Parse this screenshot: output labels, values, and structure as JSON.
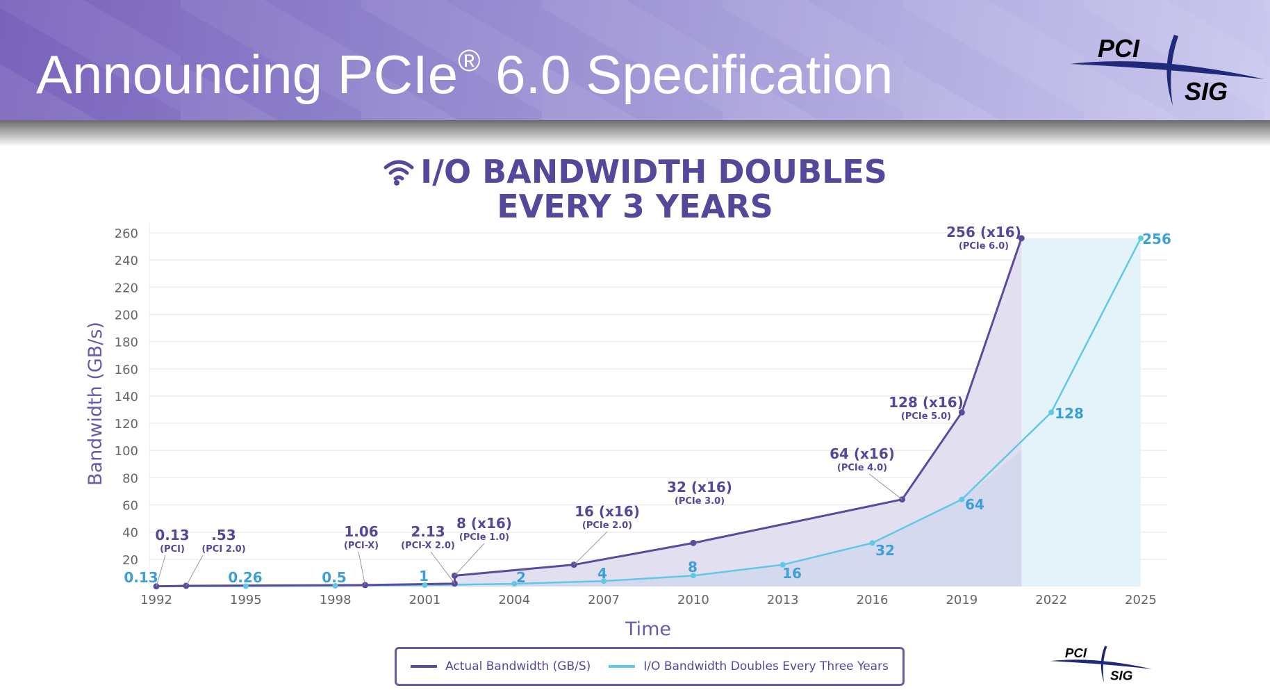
{
  "header": {
    "title_prefix": "Announcing PCIe",
    "title_mark": "®",
    "title_suffix": " 6.0 Specification",
    "logo_top": "PCI",
    "logo_bottom": "SIG"
  },
  "colors": {
    "actual": "#5b4a9e",
    "doubling": "#5ec8e6",
    "doubling_label": "#3d9fd8",
    "text": "#56479a"
  },
  "chart_data": {
    "type": "line",
    "title": [
      "I/O BANDWIDTH DOUBLES",
      "EVERY 3 YEARS"
    ],
    "title_icon": "wifi-signal-icon",
    "xlabel": "Time",
    "ylabel": "Bandwidth (GB/s)",
    "xlim": [
      1992,
      2025
    ],
    "ylim": [
      0,
      260
    ],
    "xticks": [
      1992,
      1995,
      1998,
      2001,
      2004,
      2007,
      2010,
      2013,
      2016,
      2019,
      2022,
      2025
    ],
    "yticks": [
      20,
      40,
      60,
      80,
      100,
      120,
      140,
      160,
      180,
      200,
      220,
      240,
      260
    ],
    "grid": true,
    "legend_placement": "bottom",
    "series": [
      {
        "name": "Actual Bandwidth (GB/S)",
        "points": [
          {
            "x": 1992,
            "y": 0.13,
            "label": "0.13",
            "sub": "(PCI)"
          },
          {
            "x": 1993,
            "y": 0.53,
            "label": ".53",
            "sub": "(PCI 2.0)"
          },
          {
            "x": 1999,
            "y": 1.06,
            "label": "1.06",
            "sub": "(PCI-X)"
          },
          {
            "x": 2002,
            "y": 2.13,
            "label": "2.13",
            "sub": "(PCI-X 2.0)"
          },
          {
            "x": 2002,
            "y": 8,
            "label": "8 (x16)",
            "sub": "(PCIe 1.0)"
          },
          {
            "x": 2006,
            "y": 16,
            "label": "16 (x16)",
            "sub": "(PCIe 2.0)"
          },
          {
            "x": 2010,
            "y": 32,
            "label": "32 (x16)",
            "sub": "(PCIe 3.0)"
          },
          {
            "x": 2017,
            "y": 64,
            "label": "64 (x16)",
            "sub": "(PCIe 4.0)"
          },
          {
            "x": 2019,
            "y": 128,
            "label": "128 (x16)",
            "sub": "(PCIe 5.0)"
          },
          {
            "x": 2021,
            "y": 256,
            "label": "256 (x16)",
            "sub": "(PCIe 6.0)"
          }
        ]
      },
      {
        "name": "I/O Bandwidth Doubles Every Three Years",
        "points": [
          {
            "x": 1992,
            "y": 0.13,
            "label": "0.13"
          },
          {
            "x": 1995,
            "y": 0.26,
            "label": "0.26"
          },
          {
            "x": 1998,
            "y": 0.5,
            "label": "0.5"
          },
          {
            "x": 2001,
            "y": 1,
            "label": "1"
          },
          {
            "x": 2004,
            "y": 2,
            "label": "2"
          },
          {
            "x": 2007,
            "y": 4,
            "label": "4"
          },
          {
            "x": 2010,
            "y": 8,
            "label": "8"
          },
          {
            "x": 2013,
            "y": 16,
            "label": "16"
          },
          {
            "x": 2016,
            "y": 32,
            "label": "32"
          },
          {
            "x": 2019,
            "y": 64,
            "label": "64"
          },
          {
            "x": 2022,
            "y": 128,
            "label": "128"
          },
          {
            "x": 2025,
            "y": 256,
            "label": "256"
          }
        ]
      }
    ]
  }
}
